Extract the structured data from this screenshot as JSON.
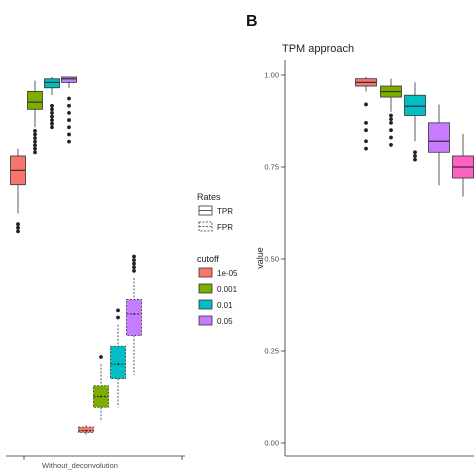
{
  "panel_label": "B",
  "legend": {
    "rates_title": "Rates",
    "rates": [
      "TPR",
      "FPR"
    ],
    "cutoff_title": "cutoff",
    "cutoffs": [
      {
        "label": "1e-05",
        "color": "#F8766D"
      },
      {
        "label": "0.001",
        "color": "#7CAE00"
      },
      {
        "label": "0.01",
        "color": "#00BFC4"
      },
      {
        "label": "0.05",
        "color": "#C77CFF"
      }
    ]
  },
  "chart_data": [
    {
      "type": "box",
      "title": "",
      "xlabel": "",
      "ylabel": "",
      "ylim": [
        0,
        1
      ],
      "categories": [
        "Without_deconvolution"
      ],
      "grid": false,
      "series": [
        {
          "name": "TPR",
          "cutoff": "1e-05",
          "linetype": "solid",
          "q1": 0.7,
          "median": 0.74,
          "q3": 0.78,
          "whisker_low": 0.62,
          "whisker_high": 0.8,
          "outliers": [
            0.57,
            0.58,
            0.59
          ]
        },
        {
          "name": "TPR",
          "cutoff": "0.001",
          "linetype": "solid",
          "q1": 0.91,
          "median": 0.93,
          "q3": 0.96,
          "whisker_low": 0.86,
          "whisker_high": 0.99,
          "outliers": [
            0.79,
            0.8,
            0.81,
            0.82,
            0.83,
            0.84,
            0.85
          ]
        },
        {
          "name": "TPR",
          "cutoff": "0.01",
          "linetype": "solid",
          "q1": 0.97,
          "median": 0.985,
          "q3": 0.995,
          "whisker_low": 0.95,
          "whisker_high": 1.0,
          "outliers": [
            0.86,
            0.87,
            0.88,
            0.89,
            0.9,
            0.91,
            0.92
          ]
        },
        {
          "name": "TPR",
          "cutoff": "0.05",
          "linetype": "solid",
          "q1": 0.985,
          "median": 0.995,
          "q3": 1.0,
          "whisker_low": 0.97,
          "whisker_high": 1.0,
          "outliers": [
            0.82,
            0.84,
            0.86,
            0.88,
            0.9,
            0.92,
            0.94
          ]
        },
        {
          "name": "FPR",
          "cutoff": "1e-05",
          "linetype": "dashed",
          "q1": 0.01,
          "median": 0.015,
          "q3": 0.025,
          "whisker_low": 0.0,
          "whisker_high": 0.03,
          "outliers": []
        },
        {
          "name": "FPR",
          "cutoff": "0.001",
          "linetype": "dashed",
          "q1": 0.08,
          "median": 0.11,
          "q3": 0.14,
          "whisker_low": 0.04,
          "whisker_high": 0.2,
          "outliers": [
            0.22
          ]
        },
        {
          "name": "FPR",
          "cutoff": "0.01",
          "linetype": "dashed",
          "q1": 0.16,
          "median": 0.2,
          "q3": 0.25,
          "whisker_low": 0.08,
          "whisker_high": 0.31,
          "outliers": [
            0.33,
            0.35
          ]
        },
        {
          "name": "FPR",
          "cutoff": "0.05",
          "linetype": "dashed",
          "q1": 0.28,
          "median": 0.34,
          "q3": 0.38,
          "whisker_low": 0.17,
          "whisker_high": 0.44,
          "outliers": [
            0.46,
            0.47,
            0.48,
            0.49,
            0.5
          ]
        }
      ]
    },
    {
      "type": "box",
      "title": "TPM approach",
      "xlabel": "",
      "ylabel": "value",
      "ylim": [
        0,
        1
      ],
      "yticks": [
        "0.00",
        "0.25",
        "0.50",
        "0.75",
        "1.00"
      ],
      "grid": false,
      "series": [
        {
          "name": "TPR",
          "cutoff": "1e-05",
          "linetype": "solid",
          "q1": 0.97,
          "median": 0.98,
          "q3": 0.99,
          "whisker_low": 0.955,
          "whisker_high": 0.995,
          "outliers": [
            0.8,
            0.82,
            0.85,
            0.87,
            0.92
          ]
        },
        {
          "name": "TPR",
          "cutoff": "0.001",
          "linetype": "solid",
          "q1": 0.94,
          "median": 0.955,
          "q3": 0.97,
          "whisker_low": 0.9,
          "whisker_high": 0.99,
          "outliers": [
            0.81,
            0.83,
            0.85,
            0.87,
            0.88,
            0.89
          ]
        },
        {
          "name": "TPR",
          "cutoff": "0.01",
          "linetype": "solid",
          "q1": 0.89,
          "median": 0.915,
          "q3": 0.945,
          "whisker_low": 0.82,
          "whisker_high": 0.98,
          "outliers": [
            0.77,
            0.78,
            0.79
          ]
        },
        {
          "name": "TPR",
          "cutoff": "0.05",
          "linetype": "solid",
          "q1": 0.79,
          "median": 0.82,
          "q3": 0.87,
          "whisker_low": 0.7,
          "whisker_high": 0.92,
          "outliers": []
        },
        {
          "name": "TPR",
          "cutoff": "",
          "linetype": "solid",
          "q1": 0.72,
          "median": 0.75,
          "q3": 0.78,
          "whisker_low": 0.67,
          "whisker_high": 0.84,
          "outliers": []
        }
      ]
    }
  ]
}
